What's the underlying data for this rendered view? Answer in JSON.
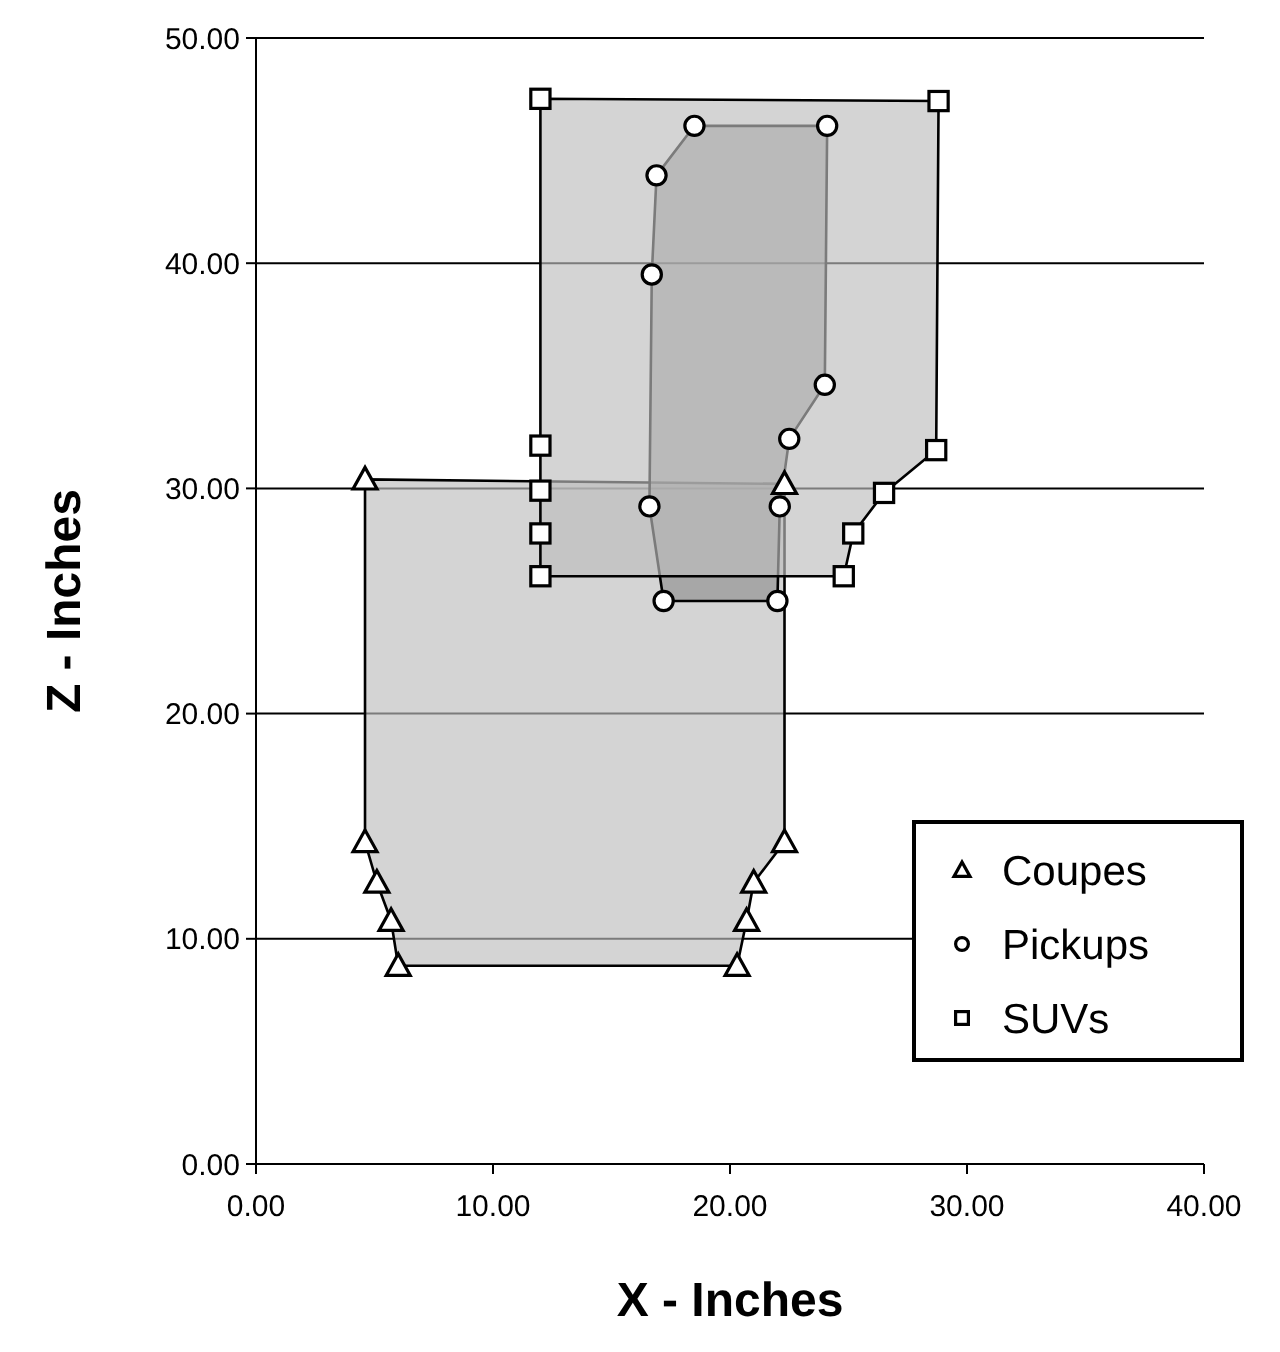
{
  "chart_data": {
    "type": "area",
    "xlabel": "X - Inches",
    "ylabel": "Z - Inches",
    "xlim": [
      0,
      40
    ],
    "ylim": [
      0,
      50
    ],
    "xticks": [
      {
        "value": 0,
        "label": "0.00"
      },
      {
        "value": 10,
        "label": "10.00"
      },
      {
        "value": 20,
        "label": "20.00"
      },
      {
        "value": 30,
        "label": "30.00"
      },
      {
        "value": 40,
        "label": "40.00"
      }
    ],
    "yticks": [
      {
        "value": 0,
        "label": "0.00"
      },
      {
        "value": 10,
        "label": "10.00"
      },
      {
        "value": 20,
        "label": "20.00"
      },
      {
        "value": 30,
        "label": "30.00"
      },
      {
        "value": 40,
        "label": "40.00"
      },
      {
        "value": 50,
        "label": "50.00"
      }
    ],
    "grid": "y",
    "legend": "right",
    "series": [
      {
        "name": "Coupes",
        "color": "#bdbdbd",
        "marker": "triangle",
        "x": [
          4.6,
          22.3,
          22.3,
          21.0,
          20.7,
          20.3,
          6.0,
          5.7,
          5.1,
          4.6
        ],
        "values": [
          30.4,
          30.2,
          14.3,
          12.5,
          10.8,
          8.8,
          8.8,
          10.8,
          12.5,
          14.3
        ]
      },
      {
        "name": "Pickups",
        "color": "#8f8f8f",
        "marker": "circle",
        "x": [
          18.5,
          24.1,
          24.0,
          22.5,
          22.1,
          22.0,
          17.2,
          16.6,
          16.7,
          16.9
        ],
        "values": [
          46.1,
          46.1,
          34.6,
          32.2,
          29.2,
          25.0,
          25.0,
          29.2,
          39.5,
          43.9
        ]
      },
      {
        "name": "SUVs",
        "color": "#bdbdbd",
        "marker": "square",
        "x": [
          12,
          28.8,
          28.7,
          26.5,
          25.2,
          24.8,
          12,
          12,
          12,
          12
        ],
        "values": [
          47.3,
          47.2,
          31.7,
          29.8,
          28.0,
          26.1,
          26.1,
          28.0,
          29.9,
          31.9
        ]
      }
    ]
  }
}
